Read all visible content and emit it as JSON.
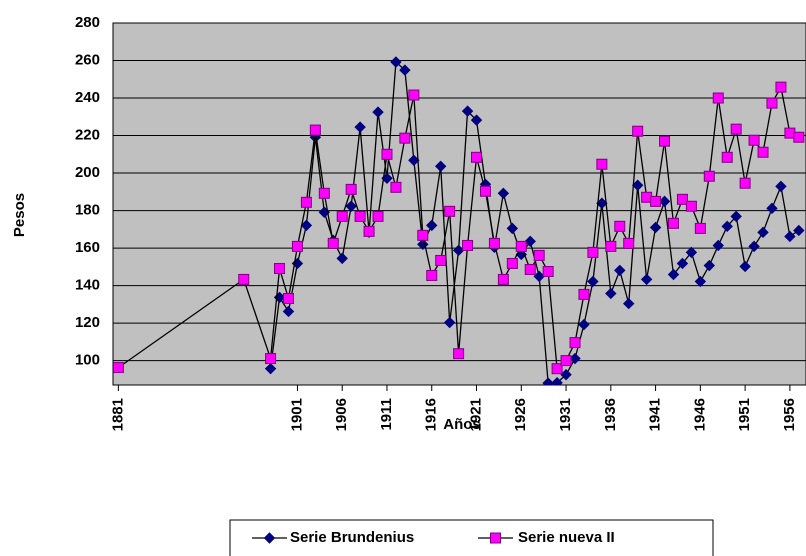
{
  "chart_data": {
    "type": "line",
    "x_label": "Años",
    "y_label": "Pesos",
    "xlim": [
      1880.4,
      1957.8
    ],
    "xticks": [
      1881,
      1901,
      1906,
      1911,
      1916,
      1921,
      1926,
      1931,
      1936,
      1941,
      1946,
      1951,
      1956
    ],
    "ylim": [
      87,
      280
    ],
    "yticks": [
      100,
      120,
      140,
      160,
      180,
      200,
      220,
      240,
      260,
      280
    ],
    "grid": true,
    "legend": "bottom",
    "series": [
      {
        "name": "Serie Brundenius",
        "color": "#000080",
        "marker": "diamond",
        "x": [
          1898,
          1899,
          1900,
          1901,
          1902,
          1903,
          1904,
          1905,
          1906,
          1907,
          1908,
          1909,
          1910,
          1911,
          1912,
          1913,
          1914,
          1915,
          1916,
          1917,
          1918,
          1919,
          1920,
          1921,
          1922,
          1923,
          1924,
          1925,
          1926,
          1927,
          1928,
          1929,
          1930,
          1931,
          1932,
          1933,
          1934,
          1935,
          1936,
          1937,
          1938,
          1939,
          1940,
          1941,
          1942,
          1943,
          1944,
          1945,
          1946,
          1947,
          1948,
          1949,
          1950,
          1951,
          1952,
          1953,
          1954,
          1955,
          1956,
          1957
        ],
        "values": [
          95.7,
          133.7,
          126.2,
          151.8,
          172.1,
          219.1,
          179.1,
          164.1,
          154.5,
          182.3,
          224.5,
          168.4,
          232.5,
          197.2,
          259.2,
          254.9,
          206.8,
          162,
          172.1,
          203.6,
          120.3,
          158.8,
          233,
          228.2,
          194,
          160.4,
          189.2,
          170.5,
          156.6,
          163.6,
          144.9,
          88,
          88.2,
          92.5,
          101.1,
          119.2,
          142.2,
          183.9,
          135.8,
          148.1,
          130.4,
          193.5,
          143.3,
          171,
          184.9,
          145.9,
          151.8,
          157.7,
          142.2,
          150.7,
          161.4,
          171.6,
          176.9,
          150.2,
          160.9,
          168.4,
          181.2,
          192.9,
          166.2,
          169.4
        ]
      },
      {
        "name": "Serie nueva II",
        "color": "#ff00ff",
        "marker": "square",
        "x": [
          1881,
          1895,
          1898,
          1899,
          1900,
          1901,
          1902,
          1903,
          1904,
          1905,
          1906,
          1907,
          1908,
          1909,
          1910,
          1911,
          1912,
          1913,
          1914,
          1915,
          1916,
          1917,
          1918,
          1919,
          1920,
          1921,
          1922,
          1923,
          1924,
          1925,
          1926,
          1927,
          1928,
          1929,
          1930,
          1931,
          1932,
          1933,
          1934,
          1935,
          1936,
          1937,
          1938,
          1939,
          1940,
          1941,
          1942,
          1943,
          1944,
          1945,
          1946,
          1947,
          1948,
          1949,
          1950,
          1951,
          1952,
          1953,
          1954,
          1955,
          1956,
          1957
        ],
        "values": [
          96.3,
          143.3,
          101.1,
          149.1,
          133.1,
          160.9,
          184.4,
          222.9,
          189.2,
          162.5,
          176.9,
          191.3,
          176.9,
          168.9,
          176.9,
          210,
          192.4,
          218.6,
          241.6,
          166.8,
          145.4,
          153.4,
          179.6,
          103.7,
          161.4,
          208.4,
          190.3,
          162.5,
          143.3,
          151.8,
          160.9,
          148.6,
          156.1,
          147.5,
          95.7,
          100,
          109.6,
          135.3,
          157.7,
          204.7,
          160.9,
          171.6,
          162.5,
          222.3,
          187.1,
          184.9,
          217,
          173.2,
          186,
          182.3,
          170.5,
          198.3,
          240,
          208.4,
          223.4,
          194.6,
          217.5,
          211.1,
          237.3,
          245.8,
          221.3,
          219.1
        ]
      }
    ]
  }
}
